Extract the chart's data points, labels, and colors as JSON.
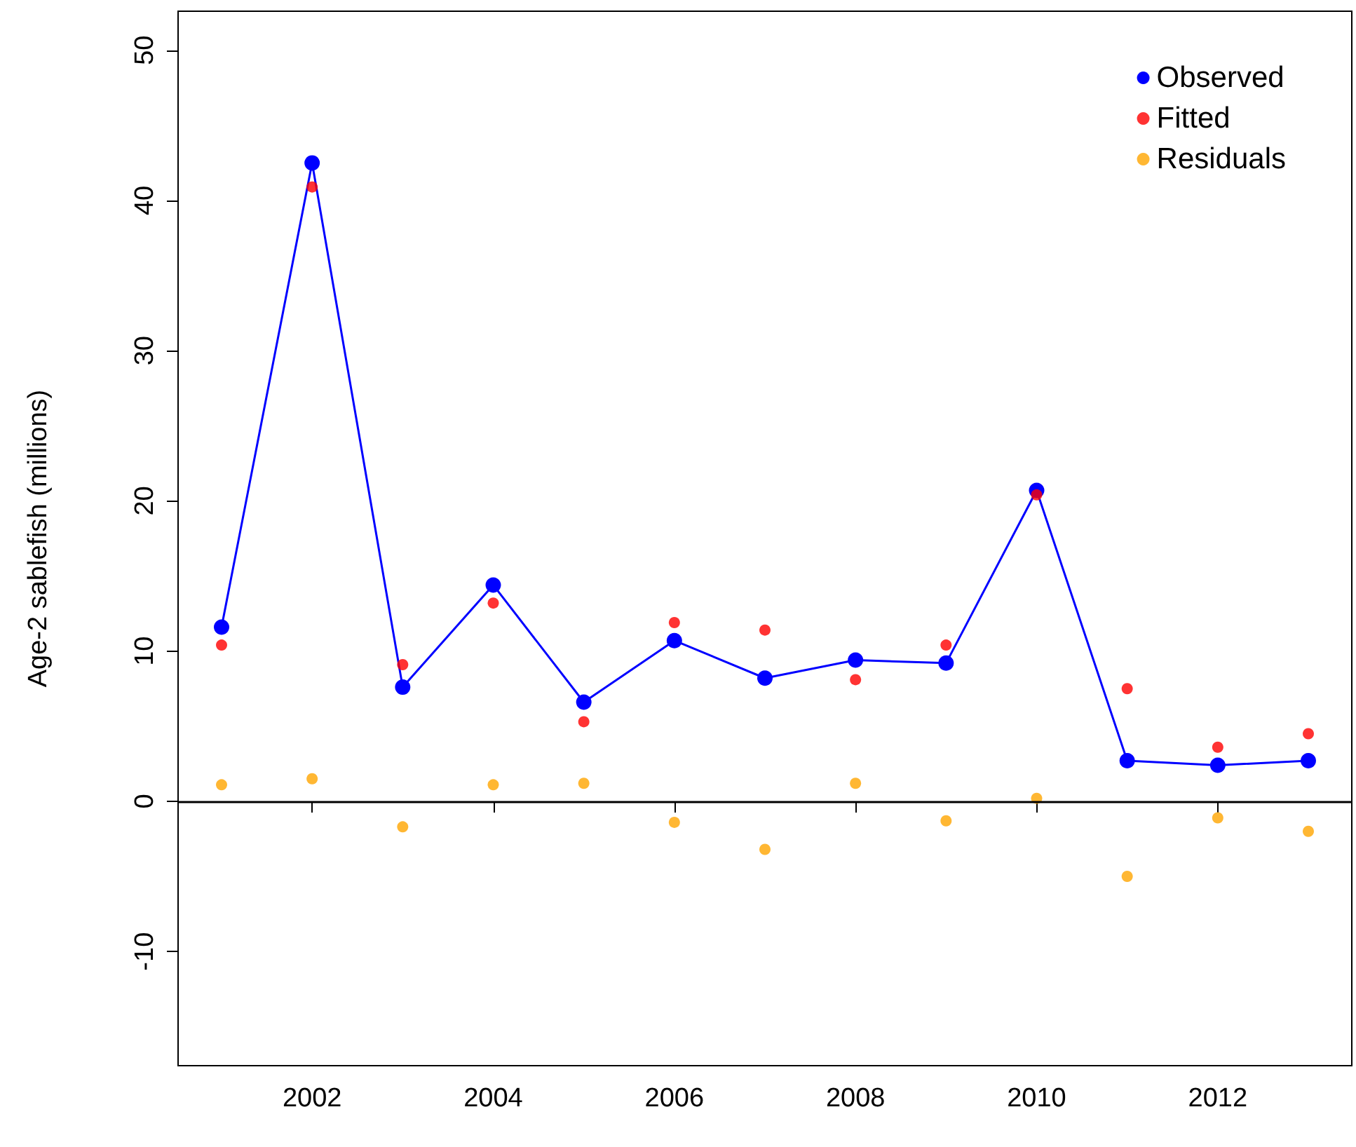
{
  "chart_data": {
    "type": "scatter",
    "ylabel": "Age-2 sablefish (millions)",
    "x": [
      2001,
      2002,
      2003,
      2004,
      2005,
      2006,
      2007,
      2008,
      2009,
      2010,
      2011,
      2012,
      2013
    ],
    "series": [
      {
        "name": "Observed",
        "type": "line",
        "marker": "circle",
        "color": "#0000ff",
        "values": [
          11.6,
          42.5,
          7.6,
          14.4,
          6.6,
          10.7,
          8.2,
          9.4,
          9.2,
          20.7,
          2.7,
          2.4,
          2.7
        ]
      },
      {
        "name": "Fitted",
        "color": "#ff0000",
        "values": [
          10.4,
          40.9,
          9.1,
          13.2,
          5.3,
          11.9,
          11.4,
          8.1,
          10.4,
          20.4,
          7.5,
          3.6,
          4.5
        ]
      },
      {
        "name": "Residuals",
        "color": "#ffa500",
        "values": [
          1.1,
          1.5,
          -1.7,
          1.1,
          1.2,
          -1.4,
          -3.2,
          1.2,
          -1.3,
          0.2,
          -5.0,
          -1.1,
          -2.0
        ]
      }
    ],
    "xlim": [
      2000.52,
      2013.48
    ],
    "xticks": [
      2002,
      2004,
      2006,
      2008,
      2010,
      2012
    ],
    "ylim": [
      -17.6,
      52.6
    ],
    "yticks": [
      -10,
      0,
      10,
      20,
      30,
      40,
      50
    ],
    "ref_lines": [
      {
        "axis": "y",
        "value": 0,
        "color": "#000000"
      }
    ],
    "marker": "circle",
    "grid": false,
    "legend": "top right"
  }
}
